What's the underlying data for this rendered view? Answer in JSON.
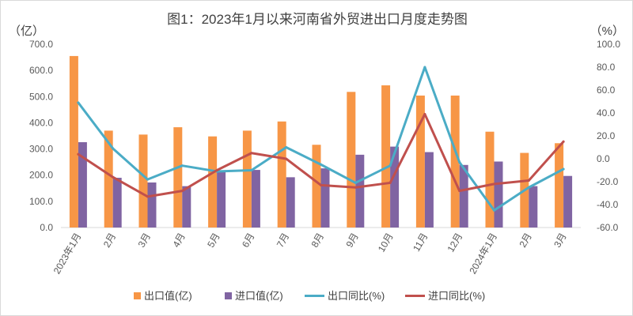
{
  "chart_data": {
    "type": "bar",
    "title": "图1：2023年1月以来河南省外贸进出口月度走势图",
    "y_left_unit": "（亿）",
    "y_right_unit": "（%）",
    "y_left_ticks": [
      "0.0",
      "100.0",
      "200.0",
      "300.0",
      "400.0",
      "500.0",
      "600.0",
      "700.0"
    ],
    "y_right_ticks": [
      "-60.0",
      "-40.0",
      "-20.0",
      "0.0",
      "20.0",
      "40.0",
      "60.0",
      "80.0",
      "100.0"
    ],
    "ylim_left": [
      0,
      700
    ],
    "ylim_right": [
      -60,
      100
    ],
    "categories": [
      "2023年1月",
      "2月",
      "3月",
      "4月",
      "5月",
      "6月",
      "7月",
      "8月",
      "9月",
      "10月",
      "11月",
      "12月",
      "2024年1月",
      "2月",
      "3月"
    ],
    "series": [
      {
        "name": "出口值(亿)",
        "kind": "bar",
        "axis": "left",
        "color": "#f79646",
        "values": [
          655,
          370,
          355,
          383,
          348,
          370,
          405,
          316,
          518,
          543,
          504,
          504,
          366,
          285,
          322
        ]
      },
      {
        "name": "进口值(亿)",
        "kind": "bar",
        "axis": "left",
        "color": "#8064a2",
        "values": [
          326,
          190,
          172,
          158,
          215,
          220,
          192,
          226,
          278,
          309,
          288,
          239,
          252,
          158,
          197
        ]
      },
      {
        "name": "出口同比(%)",
        "kind": "line",
        "axis": "right",
        "color": "#4bacc6",
        "values": [
          49,
          9,
          -18,
          -6,
          -11,
          -10,
          10,
          -5,
          -21,
          -6,
          80,
          -3,
          -45,
          -25,
          -9
        ]
      },
      {
        "name": "进口同比(%)",
        "kind": "line",
        "axis": "right",
        "color": "#c0504d",
        "values": [
          4,
          -16,
          -33,
          -28,
          -10,
          5,
          0,
          -23,
          -25,
          -21,
          39,
          -28,
          -22,
          -19,
          15
        ]
      }
    ],
    "grid": false,
    "legend_position": "bottom"
  }
}
